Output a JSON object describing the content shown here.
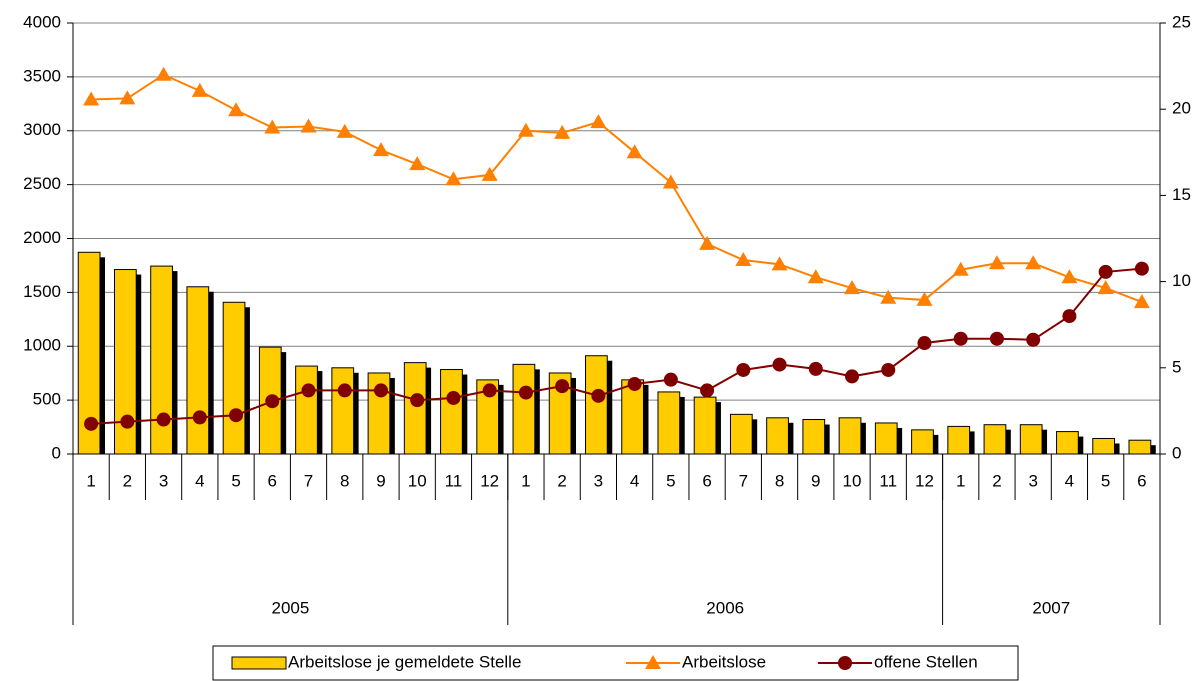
{
  "chart_data": {
    "type": "bar-line",
    "categories": [
      "1",
      "2",
      "3",
      "4",
      "5",
      "6",
      "7",
      "8",
      "9",
      "10",
      "11",
      "12",
      "1",
      "2",
      "3",
      "4",
      "5",
      "6",
      "7",
      "8",
      "9",
      "10",
      "11",
      "12",
      "1",
      "2",
      "3",
      "4",
      "5",
      "6"
    ],
    "groups": [
      "2005",
      "2006",
      "2007"
    ],
    "series": [
      {
        "name": "Arbeitslose je gemeldete Stelle",
        "type": "bar",
        "axis": "y2",
        "color": "#ffcc00",
        "values": [
          11.7,
          10.7,
          10.9,
          9.7,
          8.8,
          6.2,
          5.1,
          5.0,
          4.7,
          5.3,
          4.9,
          4.3,
          5.2,
          4.7,
          5.7,
          4.3,
          3.6,
          3.3,
          2.3,
          2.1,
          2.0,
          2.1,
          1.8,
          1.4,
          1.6,
          1.7,
          1.7,
          1.3,
          0.9,
          0.8
        ]
      },
      {
        "name": "Arbeitslose",
        "type": "line",
        "marker": "triangle",
        "color": "#ff8000",
        "values": [
          3290,
          3300,
          3520,
          3370,
          3190,
          3030,
          3040,
          2990,
          2820,
          2690,
          2550,
          2590,
          3000,
          2980,
          3080,
          2800,
          2520,
          1950,
          1800,
          1760,
          1640,
          1540,
          1450,
          1430,
          1710,
          1770,
          1770,
          1640,
          1540,
          1410
        ]
      },
      {
        "name": "offene Stellen",
        "type": "line",
        "marker": "circle",
        "color": "#800000",
        "values": [
          280,
          300,
          320,
          340,
          360,
          490,
          590,
          590,
          590,
          500,
          520,
          590,
          570,
          630,
          540,
          650,
          690,
          590,
          780,
          830,
          790,
          720,
          780,
          1030,
          1070,
          1070,
          1060,
          1280,
          1690,
          1720
        ]
      }
    ],
    "ylim": [
      0,
      4000
    ],
    "yticks": [
      0,
      500,
      1000,
      1500,
      2000,
      2500,
      3000,
      3500,
      4000
    ],
    "y2lim": [
      0,
      25
    ],
    "y2ticks": [
      0,
      5,
      10,
      15,
      20,
      25
    ],
    "grid": true
  }
}
